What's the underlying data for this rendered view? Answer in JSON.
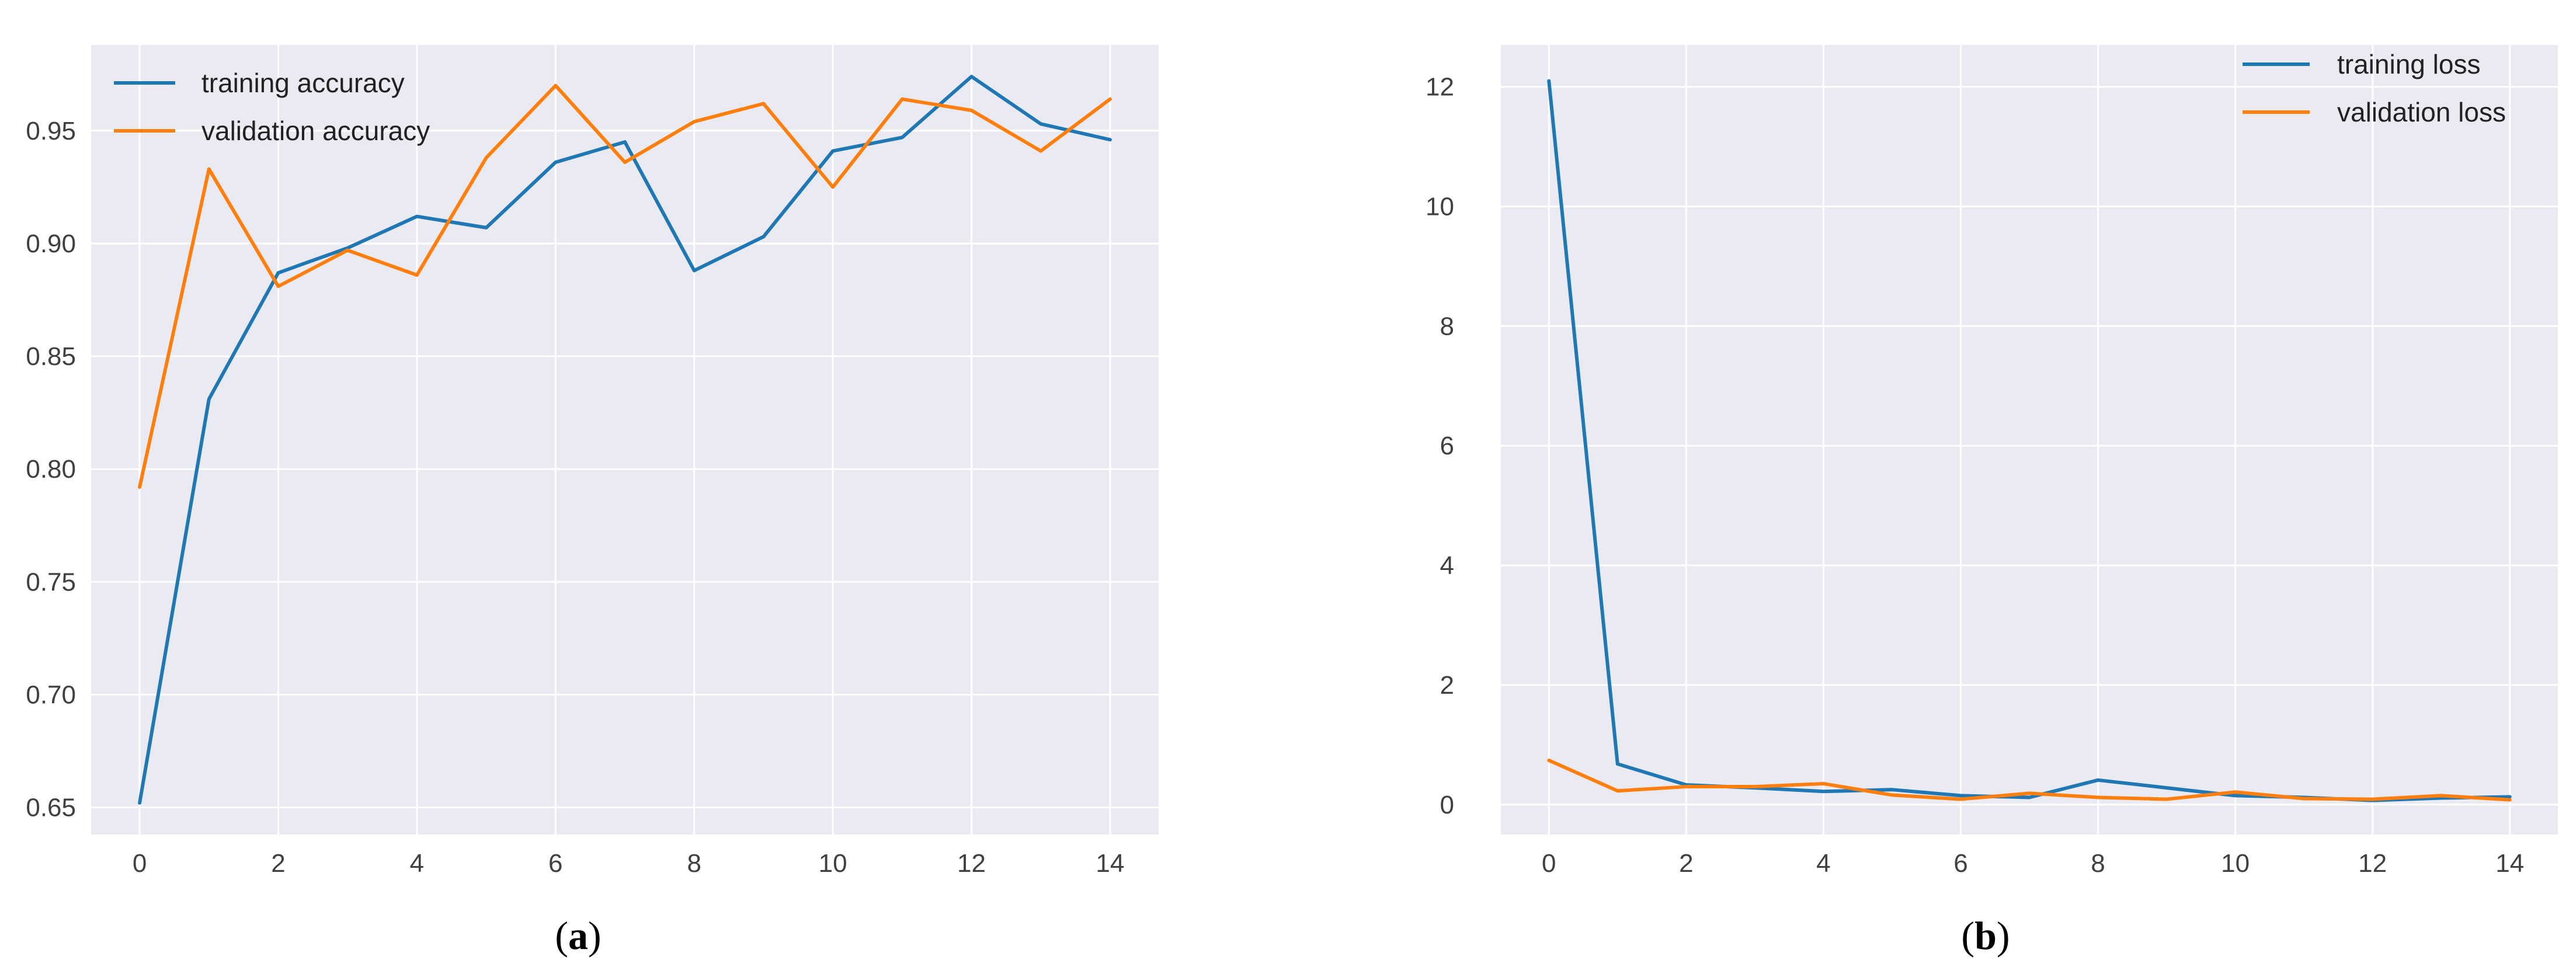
{
  "colors": {
    "plot_background": "#eaeaf2",
    "grid": "#ffffff",
    "blue": "#1f77b4",
    "orange": "#ff7f0e"
  },
  "chart_data": [
    {
      "type": "line",
      "caption": "a",
      "x": [
        0,
        1,
        2,
        3,
        4,
        5,
        6,
        7,
        8,
        9,
        10,
        11,
        12,
        13,
        14
      ],
      "series": [
        {
          "name": "training accuracy",
          "color": "#1f77b4",
          "values": [
            0.652,
            0.831,
            0.887,
            0.898,
            0.912,
            0.907,
            0.936,
            0.945,
            0.888,
            0.903,
            0.941,
            0.947,
            0.974,
            0.953,
            0.946
          ]
        },
        {
          "name": "validation accuracy",
          "color": "#ff7f0e",
          "values": [
            0.792,
            0.933,
            0.881,
            0.897,
            0.886,
            0.938,
            0.97,
            0.936,
            0.954,
            0.962,
            0.925,
            0.964,
            0.959,
            0.941,
            0.964
          ]
        }
      ],
      "xlim": [
        -0.7,
        14.7
      ],
      "ylim": [
        0.638,
        0.988
      ],
      "xticks": [
        0,
        2,
        4,
        6,
        8,
        10,
        12,
        14
      ],
      "yticks": [
        0.65,
        0.7,
        0.75,
        0.8,
        0.85,
        0.9,
        0.95
      ],
      "ytick_labels": [
        "0.65",
        "0.70",
        "0.75",
        "0.80",
        "0.85",
        "0.90",
        "0.95"
      ],
      "grid": true,
      "legend": "top-left"
    },
    {
      "type": "line",
      "caption": "b",
      "x": [
        0,
        1,
        2,
        3,
        4,
        5,
        6,
        7,
        8,
        9,
        10,
        11,
        12,
        13,
        14
      ],
      "series": [
        {
          "name": "training loss",
          "color": "#1f77b4",
          "values": [
            12.1,
            0.68,
            0.33,
            0.28,
            0.22,
            0.25,
            0.15,
            0.12,
            0.41,
            0.28,
            0.15,
            0.12,
            0.07,
            0.11,
            0.13
          ]
        },
        {
          "name": "validation loss",
          "color": "#ff7f0e",
          "values": [
            0.74,
            0.23,
            0.3,
            0.3,
            0.35,
            0.16,
            0.09,
            0.19,
            0.12,
            0.09,
            0.21,
            0.1,
            0.09,
            0.15,
            0.08
          ]
        }
      ],
      "xlim": [
        -0.7,
        14.7
      ],
      "ylim": [
        -0.5,
        12.7
      ],
      "xticks": [
        0,
        2,
        4,
        6,
        8,
        10,
        12,
        14
      ],
      "yticks": [
        0,
        2,
        4,
        6,
        8,
        10,
        12
      ],
      "ytick_labels": [
        "0",
        "2",
        "4",
        "6",
        "8",
        "10",
        "12"
      ],
      "grid": true,
      "legend": "top-right"
    }
  ]
}
